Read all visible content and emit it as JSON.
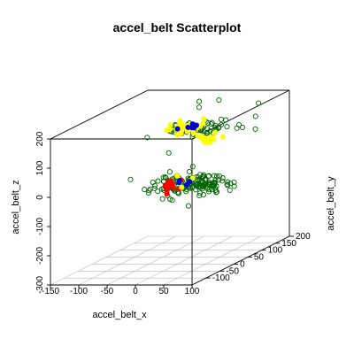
{
  "chart_data": {
    "type": "scatter",
    "projection": "3d",
    "title": "accel_belt Scatterplot",
    "xlabel": "accel_belt_x",
    "ylabel": "accel_belt_y",
    "zlabel": "accel_belt_z",
    "xlim": [
      -150,
      100
    ],
    "ylim": [
      -150,
      200
    ],
    "zlim": [
      -300,
      200
    ],
    "x_ticks": [
      "-150",
      "-100",
      "-50",
      "0",
      "50",
      "100"
    ],
    "y_ticks": [
      "-100",
      "-50",
      "0",
      "50",
      "100",
      "150",
      "200"
    ],
    "z_ticks": [
      "-300",
      "-200",
      "-100",
      "0",
      "100",
      "200"
    ],
    "grid": true,
    "clusters": [
      {
        "color": "#006400",
        "filled": false,
        "n": 60,
        "center": [
          -20,
          130,
          105
        ],
        "spread": [
          35,
          25,
          8
        ]
      },
      {
        "color": "#ffff00",
        "filled": true,
        "n": 28,
        "center": [
          -40,
          120,
          115
        ],
        "spread": [
          12,
          15,
          12
        ]
      },
      {
        "color": "#ffff00",
        "filled": true,
        "n": 16,
        "center": [
          -15,
          150,
          55
        ],
        "spread": [
          12,
          15,
          10
        ]
      },
      {
        "color": "#0000cd",
        "filled": true,
        "n": 6,
        "center": [
          -30,
          125,
          110
        ],
        "spread": [
          10,
          10,
          6
        ]
      },
      {
        "color": "#006400",
        "filled": false,
        "n": 150,
        "center": [
          30,
          -20,
          -20
        ],
        "spread": [
          35,
          22,
          18
        ]
      },
      {
        "color": "#ff0000",
        "filled": true,
        "n": 14,
        "center": [
          -10,
          0,
          -30
        ],
        "spread": [
          10,
          12,
          10
        ]
      },
      {
        "color": "#ffff00",
        "filled": true,
        "n": 4,
        "center": [
          10,
          -10,
          -10
        ],
        "spread": [
          10,
          10,
          8
        ]
      },
      {
        "color": "#0000cd",
        "filled": true,
        "n": 4,
        "center": [
          20,
          0,
          -20
        ],
        "spread": [
          10,
          10,
          8
        ]
      }
    ],
    "outliers": [
      {
        "x": -20,
        "y": 120,
        "z": 200,
        "color": "#006400"
      },
      {
        "x": 10,
        "y": 130,
        "z": 200,
        "color": "#006400"
      },
      {
        "x": 70,
        "y": 150,
        "z": 180,
        "color": "#006400"
      },
      {
        "x": 60,
        "y": 160,
        "z": 130,
        "color": "#006400"
      },
      {
        "x": -25,
        "y": 130,
        "z": 175,
        "color": "#006400"
      },
      {
        "x": 0,
        "y": -30,
        "z": 95,
        "color": "#006400"
      }
    ]
  }
}
